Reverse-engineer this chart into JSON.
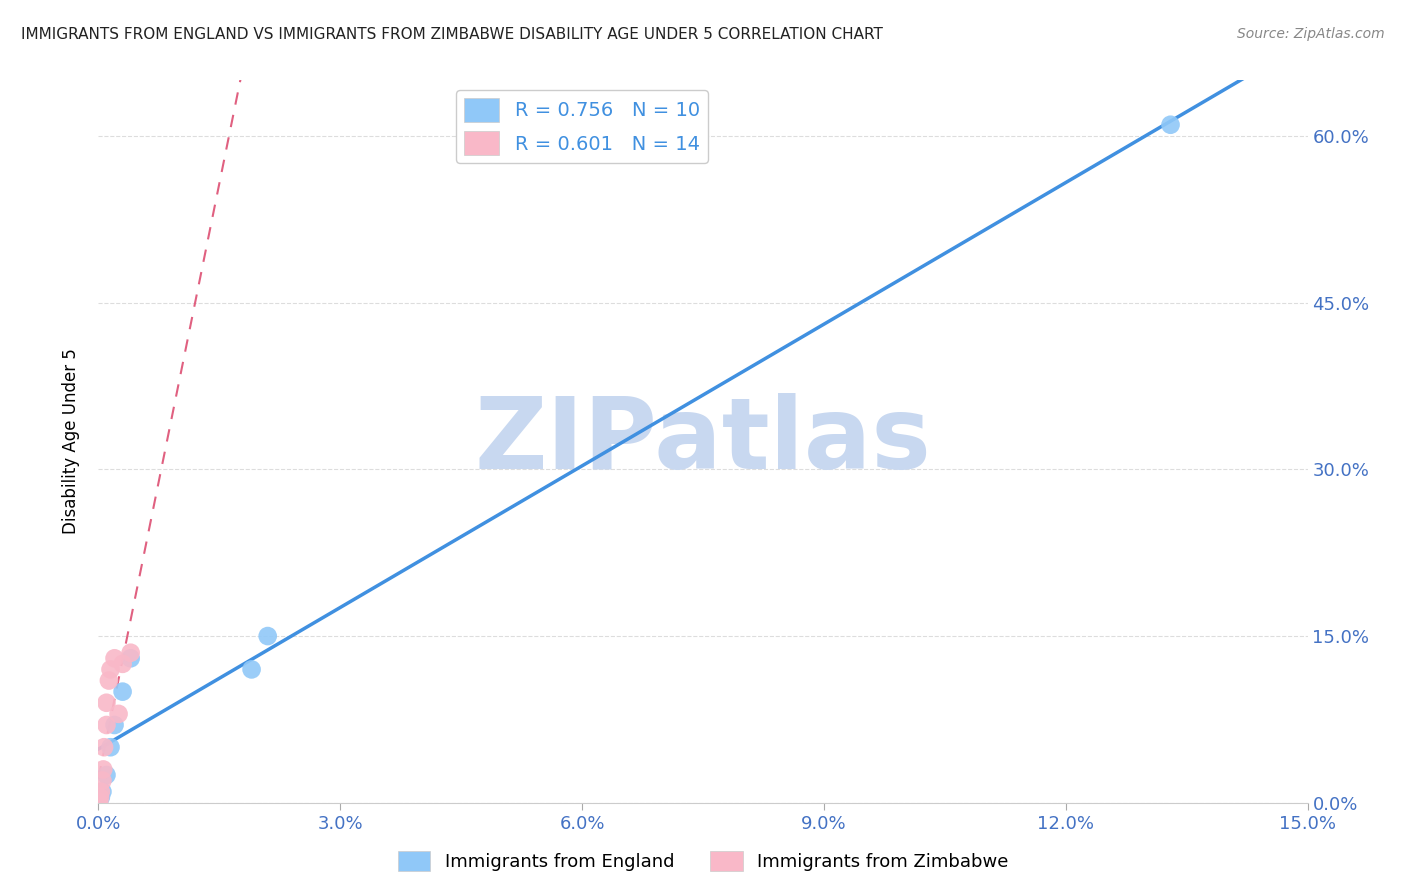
{
  "title": "IMMIGRANTS FROM ENGLAND VS IMMIGRANTS FROM ZIMBABWE DISABILITY AGE UNDER 5 CORRELATION CHART",
  "source": "Source: ZipAtlas.com",
  "ylabel": "Disability Age Under 5",
  "legend_entry1": "R = 0.756   N = 10",
  "legend_entry2": "R = 0.601   N = 14",
  "watermark": "ZIPatlas",
  "england_x": [
    0.0003,
    0.0005,
    0.001,
    0.0015,
    0.002,
    0.003,
    0.004,
    0.019,
    0.021,
    0.133
  ],
  "england_y": [
    0.005,
    0.01,
    0.025,
    0.05,
    0.07,
    0.1,
    0.13,
    0.12,
    0.15,
    0.61
  ],
  "zimbabwe_x": [
    0.0001,
    0.0002,
    0.0003,
    0.0005,
    0.0006,
    0.0007,
    0.001,
    0.001,
    0.0013,
    0.0015,
    0.002,
    0.0025,
    0.003,
    0.004
  ],
  "zimbabwe_y": [
    0.0,
    0.005,
    0.01,
    0.02,
    0.03,
    0.05,
    0.07,
    0.09,
    0.11,
    0.12,
    0.13,
    0.08,
    0.125,
    0.135
  ],
  "england_color": "#90C8F8",
  "zimbabwe_color": "#F9B8C8",
  "england_line_color": "#4090E0",
  "zimbabwe_line_color": "#E06080",
  "title_color": "#222222",
  "tick_color": "#4472C4",
  "grid_color": "#DDDDDD",
  "watermark_color": "#C8D8F0",
  "xlim": [
    0.0,
    0.15
  ],
  "ylim": [
    0.0,
    0.65
  ],
  "xticks": [
    0.0,
    0.03,
    0.06,
    0.09,
    0.12,
    0.15
  ],
  "yticks": [
    0.0,
    0.15,
    0.3,
    0.45,
    0.6
  ],
  "ytick_labels_right": [
    "0.0%",
    "15.0%",
    "30.0%",
    "45.0%",
    "60.0%"
  ],
  "xtick_labels": [
    "0.0%",
    "3.0%",
    "6.0%",
    "9.0%",
    "12.0%",
    "15.0%"
  ],
  "background_color": "#FFFFFF"
}
